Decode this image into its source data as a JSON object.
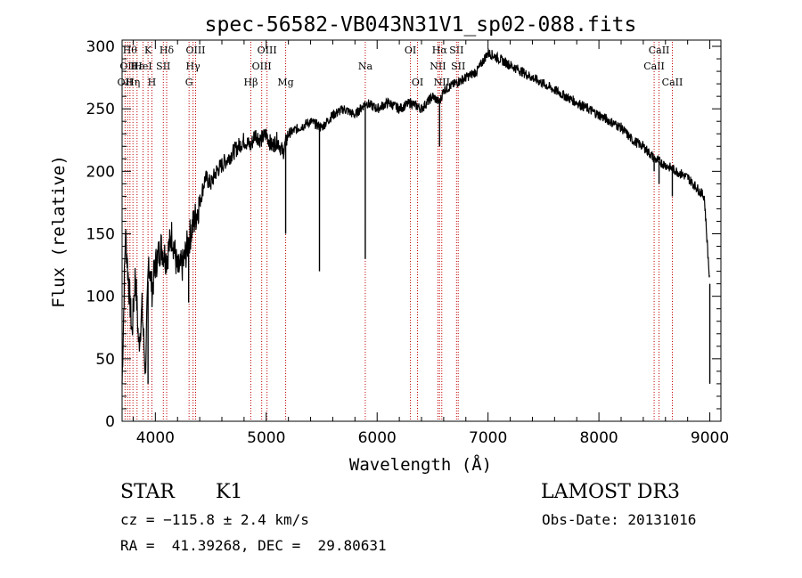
{
  "chart_data": {
    "type": "line",
    "title": "spec-56582-VB043N31V1_sp02-088.fits",
    "xlabel": "Wavelength (Å)",
    "ylabel": "Flux (relative)",
    "xlim": [
      3700,
      9100
    ],
    "ylim": [
      0,
      305
    ],
    "xticks": [
      4000,
      5000,
      6000,
      7000,
      8000,
      9000
    ],
    "yticks": [
      0,
      50,
      100,
      150,
      200,
      250,
      300
    ],
    "series": [
      {
        "name": "flux",
        "color": "#000000",
        "x": [
          3700,
          3730,
          3760,
          3790,
          3820,
          3850,
          3880,
          3910,
          3940,
          3970,
          4000,
          4050,
          4100,
          4150,
          4200,
          4250,
          4300,
          4350,
          4400,
          4450,
          4500,
          4550,
          4600,
          4650,
          4700,
          4750,
          4800,
          4860,
          4900,
          4950,
          5000,
          5050,
          5100,
          5150,
          5200,
          5300,
          5400,
          5500,
          5600,
          5700,
          5800,
          5900,
          6000,
          6100,
          6200,
          6300,
          6400,
          6500,
          6563,
          6600,
          6700,
          6800,
          6900,
          7000,
          7100,
          7200,
          7300,
          7400,
          7500,
          7600,
          7700,
          7800,
          7900,
          8000,
          8100,
          8200,
          8300,
          8400,
          8500,
          8600,
          8700,
          8800,
          8850,
          8900,
          8950,
          9000
        ],
        "y": [
          30,
          150,
          110,
          70,
          120,
          60,
          90,
          40,
          130,
          105,
          125,
          140,
          130,
          150,
          120,
          125,
          145,
          160,
          175,
          195,
          190,
          200,
          205,
          210,
          215,
          220,
          225,
          220,
          230,
          225,
          230,
          220,
          225,
          215,
          230,
          235,
          240,
          235,
          245,
          250,
          245,
          255,
          250,
          255,
          250,
          255,
          250,
          260,
          255,
          265,
          270,
          275,
          280,
          295,
          290,
          285,
          280,
          275,
          270,
          265,
          260,
          255,
          250,
          245,
          240,
          235,
          225,
          220,
          210,
          205,
          200,
          195,
          190,
          185,
          180,
          110
        ]
      }
    ],
    "dips": [
      {
        "x": 3934,
        "y": 30
      },
      {
        "x": 4300,
        "y": 95
      },
      {
        "x": 5175,
        "y": 150
      },
      {
        "x": 5480,
        "y": 120
      },
      {
        "x": 5893,
        "y": 130
      },
      {
        "x": 6563,
        "y": 220
      },
      {
        "x": 8498,
        "y": 200
      },
      {
        "x": 8542,
        "y": 190
      },
      {
        "x": 8662,
        "y": 180
      },
      {
        "x": 9000,
        "y": 30
      }
    ],
    "lines": [
      {
        "x": 3727,
        "row": 2,
        "label": "OII"
      },
      {
        "x": 3750,
        "row": 1,
        "label": "OII"
      },
      {
        "x": 3771,
        "row": 0,
        "label": "Hθ"
      },
      {
        "x": 3798,
        "row": 2,
        "label": "Hη"
      },
      {
        "x": 3835,
        "row": 1,
        "label": "Hε"
      },
      {
        "x": 3889,
        "row": 1,
        "label": "HeI"
      },
      {
        "x": 3934,
        "row": 0,
        "label": "K"
      },
      {
        "x": 3969,
        "row": 2,
        "label": "H"
      },
      {
        "x": 4072,
        "row": 1,
        "label": "SII"
      },
      {
        "x": 4102,
        "row": 0,
        "label": "Hδ"
      },
      {
        "x": 4304,
        "row": 2,
        "label": "G"
      },
      {
        "x": 4340,
        "row": 1,
        "label": "Hγ"
      },
      {
        "x": 4363,
        "row": 0,
        "label": "OIII"
      },
      {
        "x": 4861,
        "row": 2,
        "label": "Hβ"
      },
      {
        "x": 4959,
        "row": 1,
        "label": "OIII"
      },
      {
        "x": 5007,
        "row": 0,
        "label": "OIII"
      },
      {
        "x": 5175,
        "row": 2,
        "label": "Mg"
      },
      {
        "x": 5893,
        "row": 1,
        "label": "Na"
      },
      {
        "x": 6300,
        "row": 0,
        "label": "OI"
      },
      {
        "x": 6364,
        "row": 2,
        "label": "OI"
      },
      {
        "x": 6548,
        "row": 1,
        "label": "NII"
      },
      {
        "x": 6563,
        "row": 0,
        "label": "Hα"
      },
      {
        "x": 6583,
        "row": 2,
        "label": "NII"
      },
      {
        "x": 6716,
        "row": 0,
        "label": "SII"
      },
      {
        "x": 6731,
        "row": 1,
        "label": "SII"
      },
      {
        "x": 8498,
        "row": 1,
        "label": "CaII"
      },
      {
        "x": 8542,
        "row": 0,
        "label": "CaII"
      },
      {
        "x": 8662,
        "row": 2,
        "label": "CaII"
      }
    ]
  },
  "info": {
    "class_label": "STAR",
    "subclass": "K1",
    "survey": "LAMOST DR3",
    "redshift": "cz = −115.8 ± 2.4 km/s",
    "obs_date": "Obs-Date: 20131016",
    "coords": "RA =  41.39268, DEC =  29.80631"
  }
}
